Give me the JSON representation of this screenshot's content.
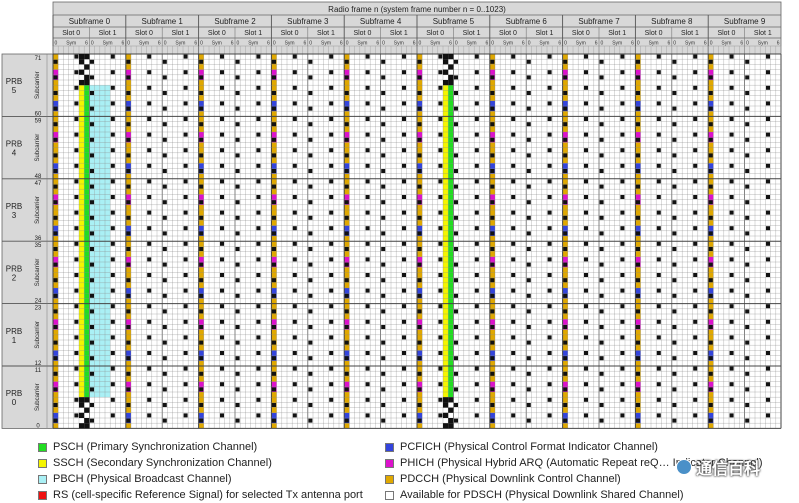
{
  "header": {
    "title": "Radio frame n (system frame number n = 0..1023)",
    "subframes": [
      "Subframe 0",
      "Subframe 1",
      "Subframe 2",
      "Subframe 3",
      "Subframe 4",
      "Subframe 5",
      "Subframe 6",
      "Subframe 7",
      "Subframe 8",
      "Subframe 9"
    ],
    "slot_labels": [
      "Slot 0",
      "Slot 1"
    ],
    "sym_label": "Sym",
    "sym_start": "0",
    "sym_end": "6"
  },
  "axis": {
    "subcarrier_label": "Subcarrier",
    "prbs": [
      {
        "label": "PRB 5",
        "top": "71",
        "bottom": "60"
      },
      {
        "label": "PRB 4",
        "top": "59",
        "bottom": "48"
      },
      {
        "label": "PRB 3",
        "top": "47",
        "bottom": "36"
      },
      {
        "label": "PRB 2",
        "top": "35",
        "bottom": "24"
      },
      {
        "label": "PRB 1",
        "top": "23",
        "bottom": "12"
      },
      {
        "label": "PRB 0",
        "top": "11",
        "bottom": "0"
      }
    ]
  },
  "colors": {
    "psch": "#22dd22",
    "ssch": "#f5f500",
    "pbch": "#aaf0f5",
    "rs": "#ee1111",
    "pcfich": "#3344dd",
    "phich": "#dd11cc",
    "pdcch": "#e0a800",
    "pdsch": "#ffffff",
    "header": "#d8d8d8",
    "grid": "#888888",
    "marker": "#111111"
  },
  "legend": {
    "left": [
      {
        "key": "psch",
        "label": "PSCH (Primary Synchronization Channel)"
      },
      {
        "key": "ssch",
        "label": "SSCH (Secondary Synchronization Channel)"
      },
      {
        "key": "pbch",
        "label": "PBCH (Physical Broadcast Channel)"
      },
      {
        "key": "rs",
        "label": "RS (cell-specific Reference Signal) for selected Tx antenna port"
      }
    ],
    "right": [
      {
        "key": "pcfich",
        "label": "PCFICH (Physical Control Format Indicator Channel)"
      },
      {
        "key": "phich",
        "label": "PHICH (Physical Hybrid ARQ (Automatic Repeat reQ… Indicator Channel)"
      },
      {
        "key": "pdcch",
        "label": "PDCCH (Physical Downlink Control Channel)"
      },
      {
        "key": "pdsch",
        "label": "Available for PDSCH (Physical Downlink Shared Channel)"
      }
    ]
  },
  "watermark": "通信百科"
}
